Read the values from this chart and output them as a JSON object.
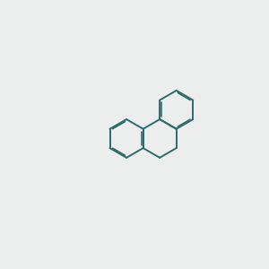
{
  "bg_color": "#eceeed",
  "bond_color": "#2d6b6b",
  "heteroatom_color": "#cc0000",
  "bond_width": 1.4,
  "dbo": 0.048,
  "bl": 0.72,
  "figsize": [
    3.0,
    3.0
  ],
  "dpi": 100,
  "xlim": [
    0,
    10
  ],
  "ylim": [
    0,
    10
  ]
}
